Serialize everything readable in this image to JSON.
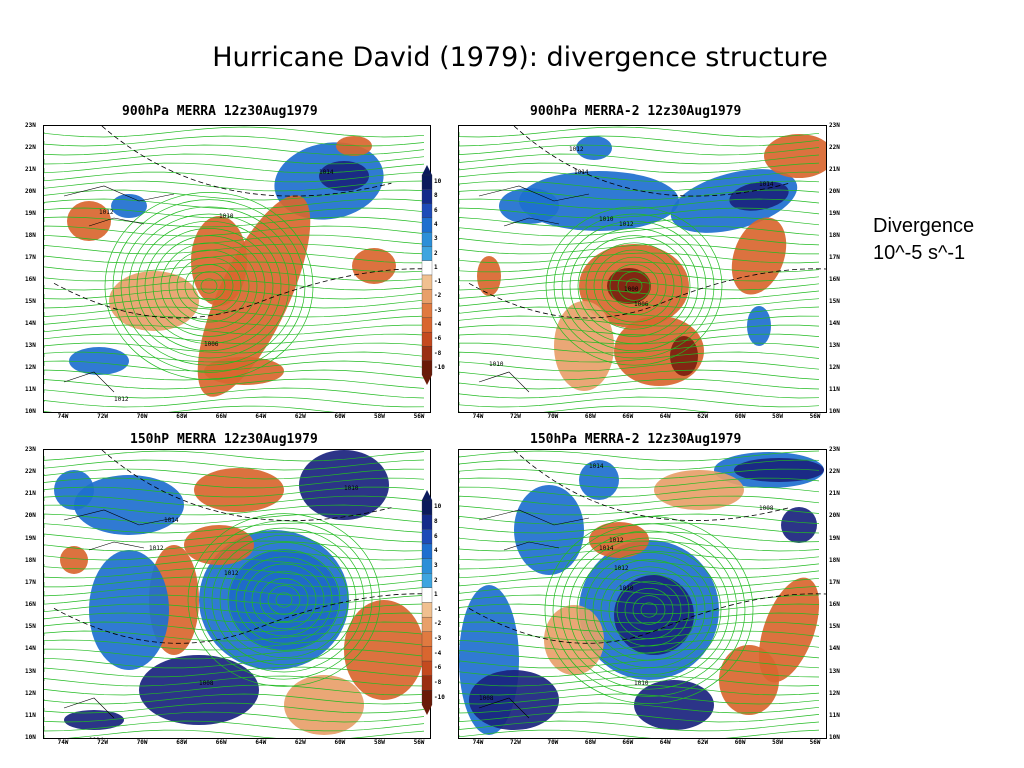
{
  "slide": {
    "title": "Hurricane David (1979): divergence structure",
    "note_line1": "Divergence",
    "note_line2": "10^-5 s^-1"
  },
  "colors": {
    "divergence_positive_dark": "#1a237e",
    "divergence_positive_mid": "#1e6fcf",
    "divergence_positive_light": "#3fa5e0",
    "divergence_negative_light": "#e8a06a",
    "divergence_negative_mid": "#d9662f",
    "divergence_negative_dark": "#7a1f0f",
    "streamlines": "#22bb22",
    "background": "#ffffff"
  },
  "chart_data": [
    {
      "type": "heatmap",
      "title": "900hPa MERRA 12z30Aug1979",
      "x_tick_labels": [
        "74W",
        "72W",
        "70W",
        "68W",
        "66W",
        "64W",
        "62W",
        "60W",
        "58W",
        "56W"
      ],
      "y_tick_labels": [
        "23N",
        "22N",
        "21N",
        "20N",
        "19N",
        "18N",
        "17N",
        "16N",
        "15N",
        "14N",
        "13N",
        "12N",
        "11N",
        "10N"
      ],
      "colorbar_labels": [
        "10",
        "8",
        "6",
        "4",
        "3",
        "2",
        "1",
        "-1",
        "-2",
        "-3",
        "-4",
        "-6",
        "-8",
        "-10"
      ],
      "annotations": [
        "1014",
        "1012",
        "1010",
        "1006",
        "1012"
      ],
      "features": [
        "streamlines",
        "divergence shading"
      ]
    },
    {
      "type": "heatmap",
      "title": "900hPa MERRA-2 12z30Aug1979",
      "x_tick_labels": [
        "74W",
        "72W",
        "70W",
        "68W",
        "66W",
        "64W",
        "62W",
        "60W",
        "58W",
        "56W"
      ],
      "y_tick_labels": [
        "23N",
        "22N",
        "21N",
        "20N",
        "19N",
        "18N",
        "17N",
        "16N",
        "15N",
        "14N",
        "13N",
        "12N",
        "11N",
        "10N"
      ],
      "annotations": [
        "1014",
        "1012",
        "1014",
        "1010",
        "1012",
        "1000",
        "1006",
        "1010"
      ],
      "features": [
        "streamlines",
        "divergence shading"
      ]
    },
    {
      "type": "heatmap",
      "title": "150hP MERRA 12z30Aug1979",
      "x_tick_labels": [
        "74W",
        "72W",
        "70W",
        "68W",
        "66W",
        "64W",
        "62W",
        "60W",
        "58W",
        "56W"
      ],
      "y_tick_labels": [
        "23N",
        "22N",
        "21N",
        "20N",
        "19N",
        "18N",
        "17N",
        "16N",
        "15N",
        "14N",
        "13N",
        "12N",
        "11N",
        "10N"
      ],
      "colorbar_labels": [
        "10",
        "8",
        "6",
        "4",
        "3",
        "2",
        "1",
        "-1",
        "-2",
        "-3",
        "-4",
        "-6",
        "-8",
        "-10"
      ],
      "annotations": [
        "1014",
        "1012",
        "1012",
        "1010",
        "1008",
        "1014"
      ],
      "features": [
        "streamlines",
        "divergence shading"
      ]
    },
    {
      "type": "heatmap",
      "title": "150hPa MERRA-2 12z30Aug1979",
      "x_tick_labels": [
        "74W",
        "72W",
        "70W",
        "68W",
        "66W",
        "64W",
        "62W",
        "60W",
        "58W",
        "56W"
      ],
      "y_tick_labels": [
        "23N",
        "22N",
        "21N",
        "20N",
        "19N",
        "18N",
        "17N",
        "16N",
        "15N",
        "14N",
        "13N",
        "12N",
        "11N",
        "10N"
      ],
      "annotations": [
        "1014",
        "1012",
        "1014",
        "1012",
        "1010",
        "1008",
        "1008",
        "1010"
      ],
      "features": [
        "streamlines",
        "divergence shading"
      ]
    }
  ]
}
